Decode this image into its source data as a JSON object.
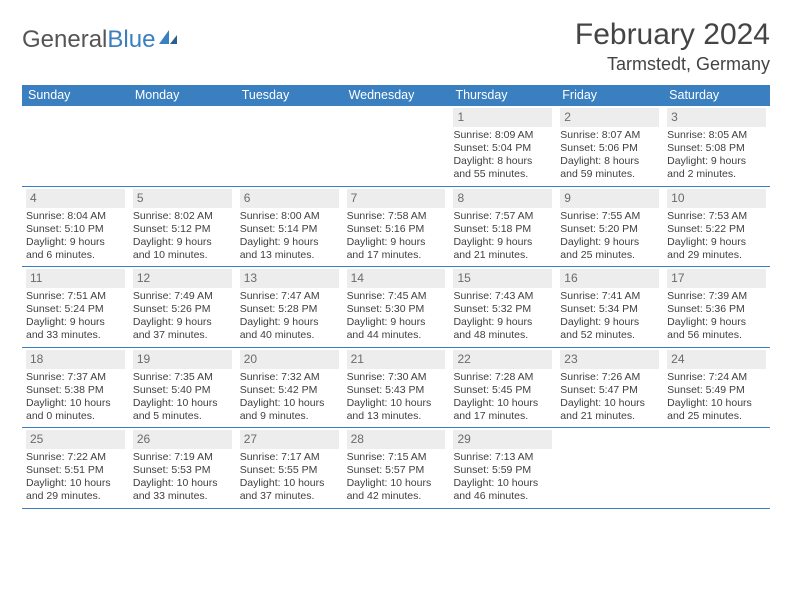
{
  "logo": {
    "text1": "General",
    "text2": "Blue"
  },
  "title": "February 2024",
  "location": "Tarmstedt, Germany",
  "colors": {
    "brand": "#3a7fbf",
    "daynum_bg": "#ededed",
    "daynum_fg": "#6b6b6b",
    "text": "#404040",
    "white": "#ffffff"
  },
  "dow": [
    "Sunday",
    "Monday",
    "Tuesday",
    "Wednesday",
    "Thursday",
    "Friday",
    "Saturday"
  ],
  "weeks": [
    [
      {
        "n": "",
        "sr": "",
        "ss": "",
        "dl": ""
      },
      {
        "n": "",
        "sr": "",
        "ss": "",
        "dl": ""
      },
      {
        "n": "",
        "sr": "",
        "ss": "",
        "dl": ""
      },
      {
        "n": "",
        "sr": "",
        "ss": "",
        "dl": ""
      },
      {
        "n": "1",
        "sr": "Sunrise: 8:09 AM",
        "ss": "Sunset: 5:04 PM",
        "dl": "Daylight: 8 hours and 55 minutes."
      },
      {
        "n": "2",
        "sr": "Sunrise: 8:07 AM",
        "ss": "Sunset: 5:06 PM",
        "dl": "Daylight: 8 hours and 59 minutes."
      },
      {
        "n": "3",
        "sr": "Sunrise: 8:05 AM",
        "ss": "Sunset: 5:08 PM",
        "dl": "Daylight: 9 hours and 2 minutes."
      }
    ],
    [
      {
        "n": "4",
        "sr": "Sunrise: 8:04 AM",
        "ss": "Sunset: 5:10 PM",
        "dl": "Daylight: 9 hours and 6 minutes."
      },
      {
        "n": "5",
        "sr": "Sunrise: 8:02 AM",
        "ss": "Sunset: 5:12 PM",
        "dl": "Daylight: 9 hours and 10 minutes."
      },
      {
        "n": "6",
        "sr": "Sunrise: 8:00 AM",
        "ss": "Sunset: 5:14 PM",
        "dl": "Daylight: 9 hours and 13 minutes."
      },
      {
        "n": "7",
        "sr": "Sunrise: 7:58 AM",
        "ss": "Sunset: 5:16 PM",
        "dl": "Daylight: 9 hours and 17 minutes."
      },
      {
        "n": "8",
        "sr": "Sunrise: 7:57 AM",
        "ss": "Sunset: 5:18 PM",
        "dl": "Daylight: 9 hours and 21 minutes."
      },
      {
        "n": "9",
        "sr": "Sunrise: 7:55 AM",
        "ss": "Sunset: 5:20 PM",
        "dl": "Daylight: 9 hours and 25 minutes."
      },
      {
        "n": "10",
        "sr": "Sunrise: 7:53 AM",
        "ss": "Sunset: 5:22 PM",
        "dl": "Daylight: 9 hours and 29 minutes."
      }
    ],
    [
      {
        "n": "11",
        "sr": "Sunrise: 7:51 AM",
        "ss": "Sunset: 5:24 PM",
        "dl": "Daylight: 9 hours and 33 minutes."
      },
      {
        "n": "12",
        "sr": "Sunrise: 7:49 AM",
        "ss": "Sunset: 5:26 PM",
        "dl": "Daylight: 9 hours and 37 minutes."
      },
      {
        "n": "13",
        "sr": "Sunrise: 7:47 AM",
        "ss": "Sunset: 5:28 PM",
        "dl": "Daylight: 9 hours and 40 minutes."
      },
      {
        "n": "14",
        "sr": "Sunrise: 7:45 AM",
        "ss": "Sunset: 5:30 PM",
        "dl": "Daylight: 9 hours and 44 minutes."
      },
      {
        "n": "15",
        "sr": "Sunrise: 7:43 AM",
        "ss": "Sunset: 5:32 PM",
        "dl": "Daylight: 9 hours and 48 minutes."
      },
      {
        "n": "16",
        "sr": "Sunrise: 7:41 AM",
        "ss": "Sunset: 5:34 PM",
        "dl": "Daylight: 9 hours and 52 minutes."
      },
      {
        "n": "17",
        "sr": "Sunrise: 7:39 AM",
        "ss": "Sunset: 5:36 PM",
        "dl": "Daylight: 9 hours and 56 minutes."
      }
    ],
    [
      {
        "n": "18",
        "sr": "Sunrise: 7:37 AM",
        "ss": "Sunset: 5:38 PM",
        "dl": "Daylight: 10 hours and 0 minutes."
      },
      {
        "n": "19",
        "sr": "Sunrise: 7:35 AM",
        "ss": "Sunset: 5:40 PM",
        "dl": "Daylight: 10 hours and 5 minutes."
      },
      {
        "n": "20",
        "sr": "Sunrise: 7:32 AM",
        "ss": "Sunset: 5:42 PM",
        "dl": "Daylight: 10 hours and 9 minutes."
      },
      {
        "n": "21",
        "sr": "Sunrise: 7:30 AM",
        "ss": "Sunset: 5:43 PM",
        "dl": "Daylight: 10 hours and 13 minutes."
      },
      {
        "n": "22",
        "sr": "Sunrise: 7:28 AM",
        "ss": "Sunset: 5:45 PM",
        "dl": "Daylight: 10 hours and 17 minutes."
      },
      {
        "n": "23",
        "sr": "Sunrise: 7:26 AM",
        "ss": "Sunset: 5:47 PM",
        "dl": "Daylight: 10 hours and 21 minutes."
      },
      {
        "n": "24",
        "sr": "Sunrise: 7:24 AM",
        "ss": "Sunset: 5:49 PM",
        "dl": "Daylight: 10 hours and 25 minutes."
      }
    ],
    [
      {
        "n": "25",
        "sr": "Sunrise: 7:22 AM",
        "ss": "Sunset: 5:51 PM",
        "dl": "Daylight: 10 hours and 29 minutes."
      },
      {
        "n": "26",
        "sr": "Sunrise: 7:19 AM",
        "ss": "Sunset: 5:53 PM",
        "dl": "Daylight: 10 hours and 33 minutes."
      },
      {
        "n": "27",
        "sr": "Sunrise: 7:17 AM",
        "ss": "Sunset: 5:55 PM",
        "dl": "Daylight: 10 hours and 37 minutes."
      },
      {
        "n": "28",
        "sr": "Sunrise: 7:15 AM",
        "ss": "Sunset: 5:57 PM",
        "dl": "Daylight: 10 hours and 42 minutes."
      },
      {
        "n": "29",
        "sr": "Sunrise: 7:13 AM",
        "ss": "Sunset: 5:59 PM",
        "dl": "Daylight: 10 hours and 46 minutes."
      },
      {
        "n": "",
        "sr": "",
        "ss": "",
        "dl": ""
      },
      {
        "n": "",
        "sr": "",
        "ss": "",
        "dl": ""
      }
    ]
  ]
}
